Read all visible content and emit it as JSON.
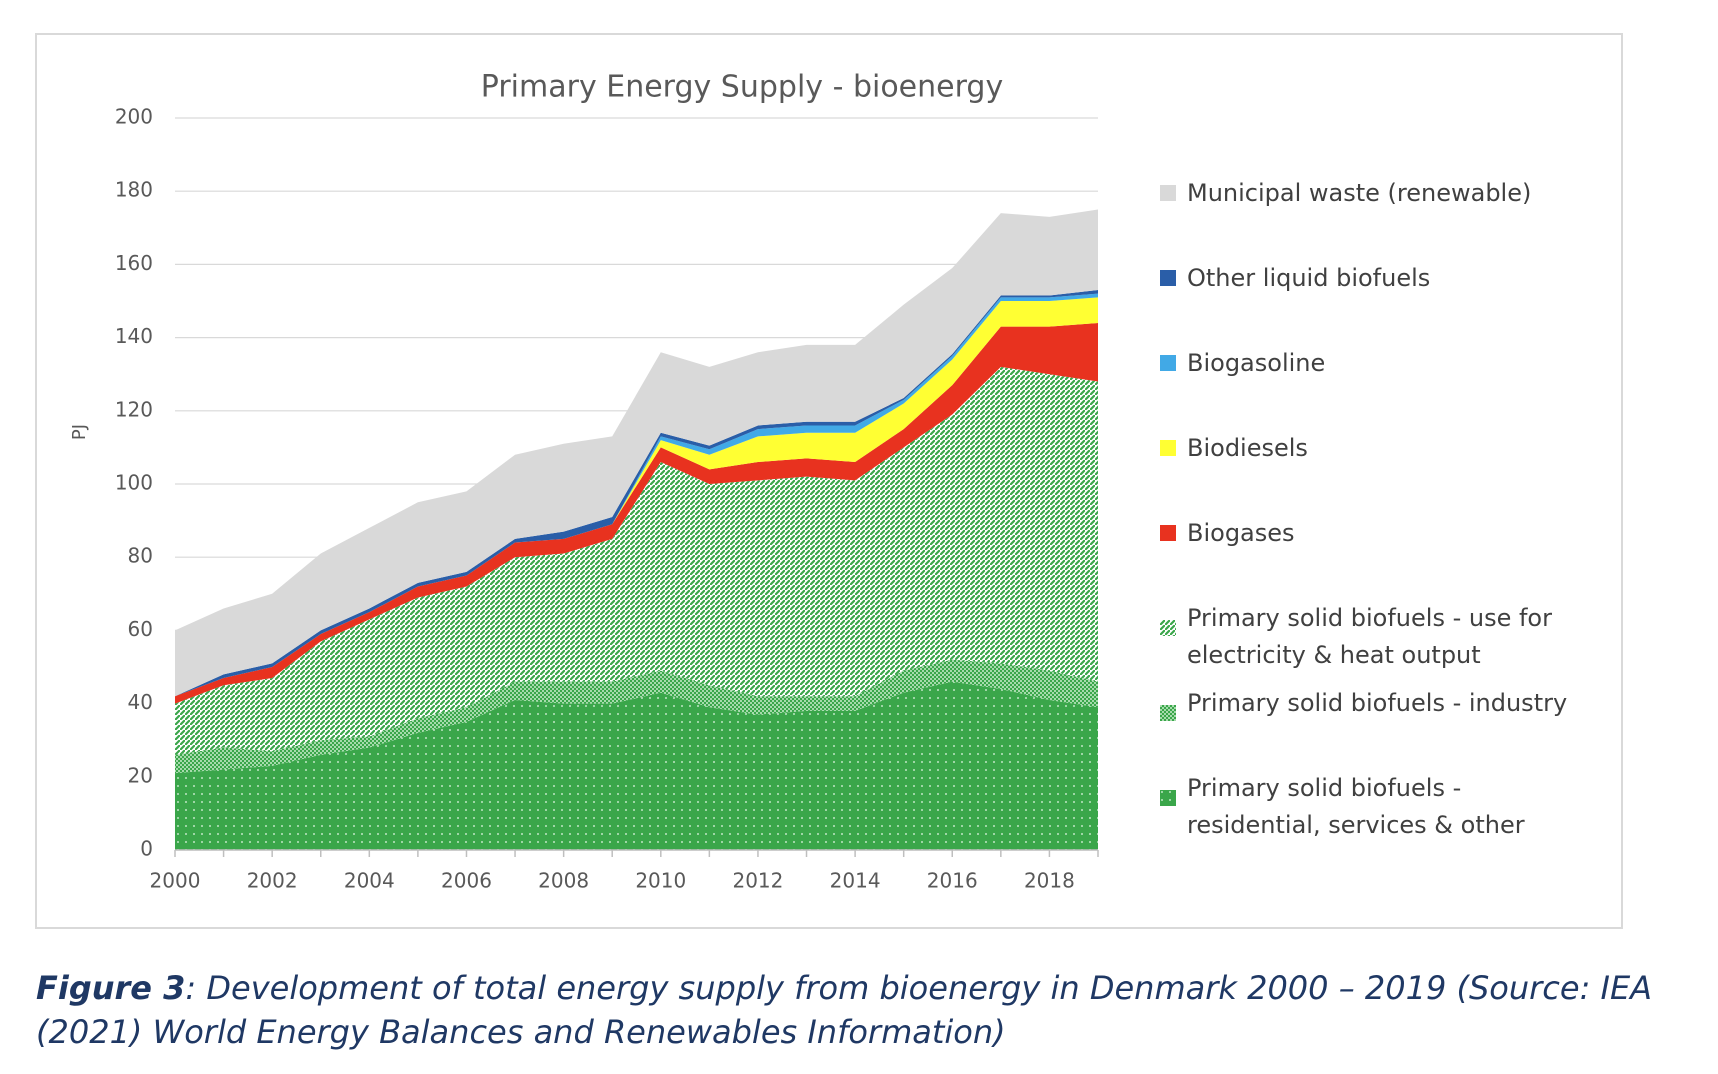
{
  "chart_data": {
    "type": "stacked-area",
    "title": "Primary Energy Supply - bioenergy",
    "y_label": "PJ",
    "x": [
      2000,
      2001,
      2002,
      2003,
      2004,
      2005,
      2006,
      2007,
      2008,
      2009,
      2010,
      2011,
      2012,
      2013,
      2014,
      2015,
      2016,
      2017,
      2018,
      2019
    ],
    "xlim": [
      2000,
      2019
    ],
    "xticks": [
      2000,
      2002,
      2004,
      2006,
      2008,
      2010,
      2012,
      2014,
      2016,
      2018
    ],
    "ylim": [
      0,
      200
    ],
    "yticks": [
      0,
      20,
      40,
      60,
      80,
      100,
      120,
      140,
      160,
      180,
      200
    ],
    "grid": true,
    "legend": "right",
    "series": [
      {
        "name": "Primary solid biofuels - residential, services & other",
        "color": "#3aa64a",
        "pattern": "dots",
        "values": [
          21,
          22,
          23,
          26,
          28,
          32,
          35,
          41,
          40,
          40,
          43,
          39,
          37,
          38,
          38,
          43,
          46,
          44,
          41,
          39
        ]
      },
      {
        "name": "Primary solid biofuels - industry",
        "color": "#3aa64a",
        "pattern": "checks",
        "values": [
          5,
          6,
          4,
          4,
          3,
          4,
          4,
          5,
          6,
          6,
          6,
          6,
          5,
          4,
          4,
          6,
          6,
          7,
          8,
          7
        ]
      },
      {
        "name": "Primary solid biofuels - use for electricity & heat output",
        "color": "#3aa64a",
        "pattern": "hatch",
        "values": [
          14,
          17,
          20,
          27,
          32,
          33,
          33,
          34,
          35,
          39,
          57,
          55,
          59,
          60,
          59,
          61,
          67,
          81,
          81,
          82
        ]
      },
      {
        "name": "Biogases",
        "color": "#e8321f",
        "values": [
          2,
          2,
          3,
          2,
          2,
          3,
          3,
          4,
          4,
          4,
          4,
          4,
          5,
          5,
          5,
          5,
          8,
          11,
          13,
          16
        ]
      },
      {
        "name": "Biodiesels",
        "color": "#ffff33",
        "values": [
          0,
          0,
          0,
          0,
          0,
          0,
          0,
          0,
          0,
          0,
          2,
          4,
          7,
          7,
          8,
          7,
          7,
          7,
          7,
          7
        ]
      },
      {
        "name": "Biogasoline",
        "color": "#41a9e6",
        "values": [
          0,
          0,
          0,
          0,
          0,
          0,
          0,
          0,
          0,
          0,
          1,
          1.5,
          2,
          2,
          2,
          1,
          1,
          1,
          1,
          1
        ]
      },
      {
        "name": "Other liquid biofuels",
        "color": "#2a5ea8",
        "values": [
          0,
          1,
          1,
          1,
          1,
          1,
          1,
          1,
          2,
          2,
          1,
          1,
          1,
          1,
          1,
          0.5,
          0.5,
          0.5,
          0.5,
          1
        ]
      },
      {
        "name": "Municipal waste (renewable)",
        "color": "#d9d9d9",
        "values": [
          18,
          18,
          19,
          21,
          22,
          22,
          22,
          23,
          24,
          22,
          22,
          21.5,
          20,
          21,
          21,
          25.5,
          23.5,
          22.5,
          21.5,
          22
        ]
      }
    ]
  },
  "caption": {
    "label": "Figure 3",
    "text": ": Development of total energy supply from bioenergy in Denmark 2000 – 2019 (Source: IEA (2021) World Energy Balances and Renewables Information)"
  }
}
